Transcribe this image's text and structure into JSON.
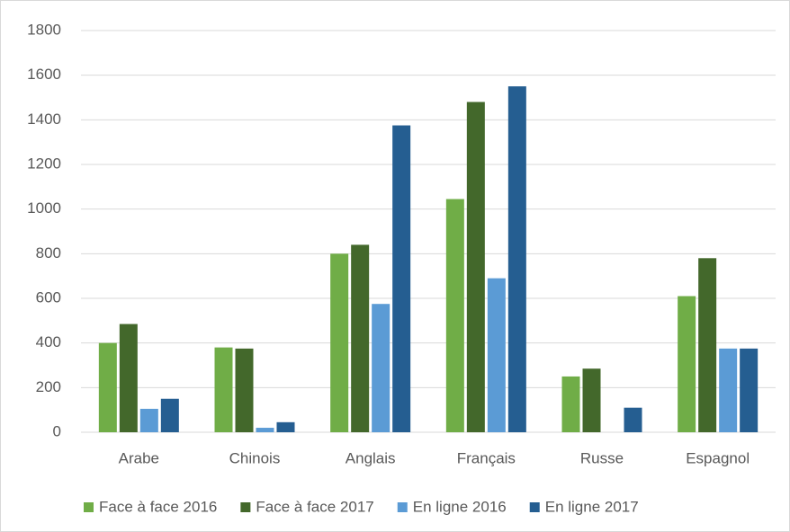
{
  "chart_data": {
    "type": "bar",
    "categories": [
      "Arabe",
      "Chinois",
      "Anglais",
      "Français",
      "Russe",
      "Espagnol"
    ],
    "series": [
      {
        "name": "Face à face 2016",
        "color": "#70ad47",
        "values": [
          400,
          380,
          800,
          1045,
          250,
          610
        ]
      },
      {
        "name": "Face à face 2017",
        "color": "#43682b",
        "values": [
          485,
          375,
          840,
          1480,
          285,
          780
        ]
      },
      {
        "name": "En ligne 2016",
        "color": "#5b9bd5",
        "values": [
          105,
          20,
          575,
          690,
          null,
          375
        ]
      },
      {
        "name": "En ligne 2017",
        "color": "#255e91",
        "values": [
          150,
          45,
          1375,
          1550,
          110,
          375
        ]
      }
    ],
    "ylim": [
      0,
      1800
    ],
    "yticks": [
      0,
      200,
      400,
      600,
      800,
      1000,
      1200,
      1400,
      1600,
      1800
    ],
    "grid": true,
    "legend": "bottom"
  }
}
